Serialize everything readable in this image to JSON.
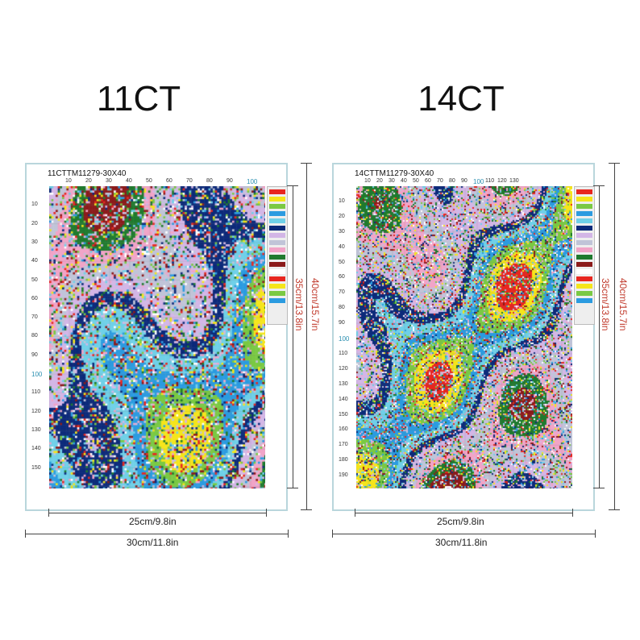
{
  "panels": [
    {
      "title": "11CT",
      "code": "11CTTM11279-30X40",
      "top_ticks": [
        "10",
        "20",
        "30",
        "40",
        "50",
        "60",
        "70",
        "80",
        "90",
        "100"
      ],
      "left_ticks": [
        "10",
        "20",
        "30",
        "40",
        "50",
        "60",
        "70",
        "80",
        "90",
        "100",
        "110",
        "120",
        "130",
        "140",
        "150"
      ],
      "inner_height": "35cm/13.8in",
      "outer_height": "40cm/15.7in",
      "inner_width": "25cm/9.8in",
      "outer_width": "30cm/11.8in"
    },
    {
      "title": "14CT",
      "code": "14CTTM11279-30X40",
      "top_ticks": [
        "10",
        "20",
        "30",
        "40",
        "50",
        "60",
        "70",
        "80",
        "90",
        "100",
        "110",
        "120",
        "130"
      ],
      "left_ticks": [
        "10",
        "20",
        "30",
        "40",
        "50",
        "60",
        "70",
        "80",
        "90",
        "100",
        "110",
        "120",
        "130",
        "140",
        "150",
        "160",
        "170",
        "180",
        "190"
      ],
      "inner_height": "35cm/13.8in",
      "outer_height": "40cm/15.7in",
      "inner_width": "25cm/9.8in",
      "outer_width": "30cm/11.8in"
    }
  ],
  "palette": [
    "#e8261f",
    "#f5e51b",
    "#7ac943",
    "#2b9be0",
    "#6fd0e8",
    "#0c2a7a",
    "#d3b6e6",
    "#c0c4d8",
    "#f1a4c7",
    "#1f7a2e",
    "#8b1a1a",
    "#ffffff"
  ],
  "accent": "#2a8fb0"
}
